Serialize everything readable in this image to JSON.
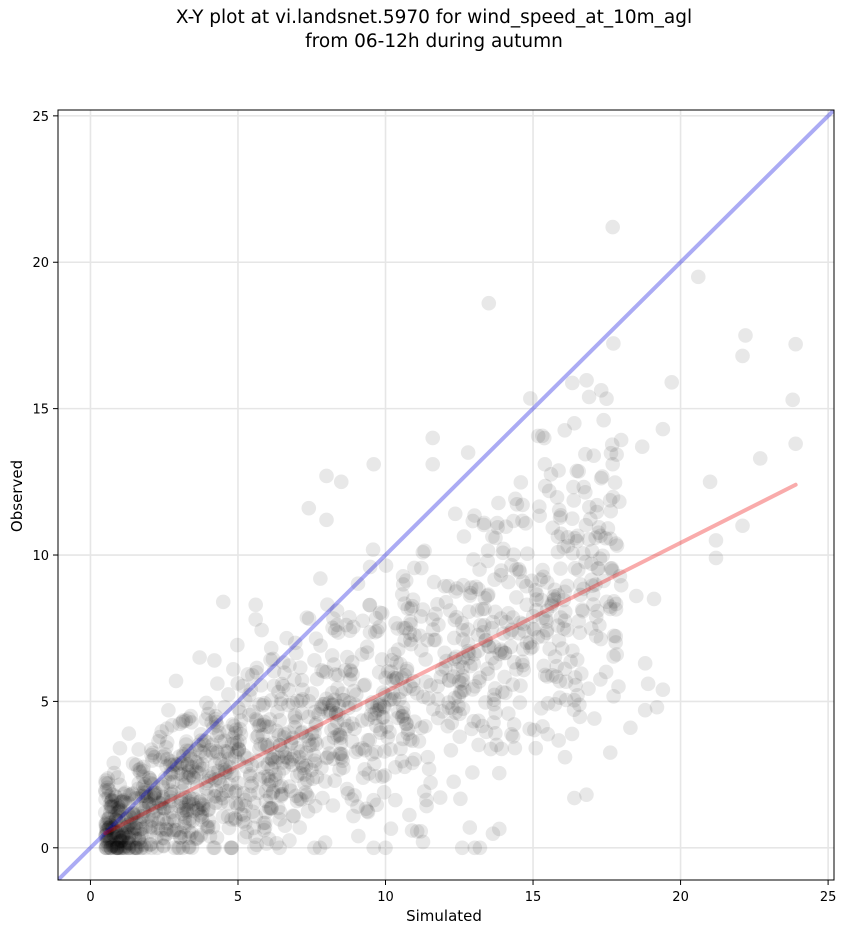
{
  "chart_data": {
    "type": "scatter",
    "title_line1": "X-Y plot at vi.landsnet.5970 for wind_speed_at_10m_agl",
    "title_line2": "from 06-12h during autumn",
    "xlabel": "Simulated",
    "ylabel": "Observed",
    "xlim": [
      -1.1,
      25.2
    ],
    "ylim": [
      -1.1,
      25.2
    ],
    "xticks": [
      0,
      5,
      10,
      15,
      20,
      25
    ],
    "yticks": [
      0,
      5,
      10,
      15,
      20,
      25
    ],
    "grid": true,
    "point_color": "#000000",
    "point_alpha": 0.09,
    "identity_line": {
      "color": "#0000dd",
      "x": [
        -1.1,
        25.2
      ],
      "y": [
        -1.1,
        25.2
      ]
    },
    "regression_line": {
      "color": "#ee0000",
      "x": [
        0.5,
        23.9
      ],
      "y": [
        0.5,
        12.4
      ]
    },
    "highlight_points": [
      {
        "x": 17.7,
        "y": 21.2
      },
      {
        "x": 20.6,
        "y": 19.5
      },
      {
        "x": 13.5,
        "y": 18.6
      },
      {
        "x": 22.2,
        "y": 17.5
      },
      {
        "x": 22.1,
        "y": 16.8
      },
      {
        "x": 23.9,
        "y": 17.2
      },
      {
        "x": 19.7,
        "y": 15.9
      },
      {
        "x": 23.8,
        "y": 15.3
      },
      {
        "x": 16.9,
        "y": 15.4
      },
      {
        "x": 16.4,
        "y": 14.5
      },
      {
        "x": 19.4,
        "y": 14.3
      },
      {
        "x": 11.6,
        "y": 14.0
      },
      {
        "x": 23.9,
        "y": 13.8
      },
      {
        "x": 18.7,
        "y": 13.7
      },
      {
        "x": 12.8,
        "y": 13.5
      },
      {
        "x": 22.7,
        "y": 13.3
      },
      {
        "x": 9.6,
        "y": 13.1
      },
      {
        "x": 11.6,
        "y": 13.1
      },
      {
        "x": 15.4,
        "y": 13.1
      },
      {
        "x": 17.7,
        "y": 13.1
      },
      {
        "x": 8.0,
        "y": 12.7
      },
      {
        "x": 8.5,
        "y": 12.5
      },
      {
        "x": 21.0,
        "y": 12.5
      },
      {
        "x": 7.4,
        "y": 11.6
      },
      {
        "x": 8.0,
        "y": 11.2
      },
      {
        "x": 22.1,
        "y": 11.0
      },
      {
        "x": 21.2,
        "y": 10.5
      },
      {
        "x": 21.2,
        "y": 9.9
      },
      {
        "x": 4.5,
        "y": 8.4
      },
      {
        "x": 5.6,
        "y": 8.3
      },
      {
        "x": 5.6,
        "y": 7.8
      },
      {
        "x": 18.5,
        "y": 8.6
      },
      {
        "x": 19.1,
        "y": 8.5
      },
      {
        "x": 18.8,
        "y": 6.3
      },
      {
        "x": 18.9,
        "y": 5.6
      },
      {
        "x": 19.4,
        "y": 5.4
      },
      {
        "x": 18.3,
        "y": 4.1
      },
      {
        "x": 19.2,
        "y": 4.8
      },
      {
        "x": 18.8,
        "y": 4.7
      },
      {
        "x": 16.4,
        "y": 1.7
      },
      {
        "x": 12.6,
        "y": 0.0
      },
      {
        "x": 13.2,
        "y": 0.0
      },
      {
        "x": 10.0,
        "y": 0.0
      },
      {
        "x": 9.6,
        "y": 0.0
      },
      {
        "x": 2.9,
        "y": 5.7
      },
      {
        "x": 3.7,
        "y": 6.5
      },
      {
        "x": 4.2,
        "y": 6.4
      },
      {
        "x": 1.3,
        "y": 3.9
      },
      {
        "x": 0.6,
        "y": 2.2
      },
      {
        "x": 1.0,
        "y": 3.4
      }
    ]
  }
}
